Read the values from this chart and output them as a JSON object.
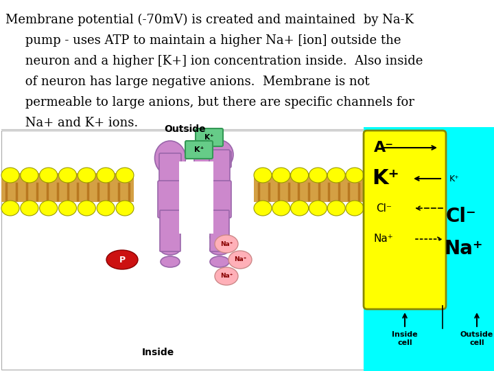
{
  "bg_color": "#ffffff",
  "cyan_bg": "#00FFFF",
  "yellow_box": "#FFFF00",
  "protein_color": "#CC88CC",
  "protein_edge": "#9966AA",
  "membrane_yellow": "#FFFF00",
  "membrane_edge": "#999900",
  "membrane_fill": "#D4A044",
  "membrane_line": "#B87820",
  "na_color": "#FFB0B8",
  "na_edge": "#CC8888",
  "p_color": "#CC1111",
  "k_label_bg": "#66CC88",
  "k_label_edge": "#339955",
  "text_lines": [
    "Membrane potential (-70mV) is created and maintained  by Na-K",
    "     pump - uses ATP to maintain a higher Na+ [ion] outside the",
    "     neuron and a higher [K+] ion concentration inside.  Also inside",
    "     of neuron has large negative anions.  Membrane is not",
    "     permeable to large anions, but there are specific channels for",
    "     Na+ and K+ ions."
  ],
  "text_fontsize": 13,
  "fig_width": 7.2,
  "fig_height": 5.4,
  "dpi": 100
}
